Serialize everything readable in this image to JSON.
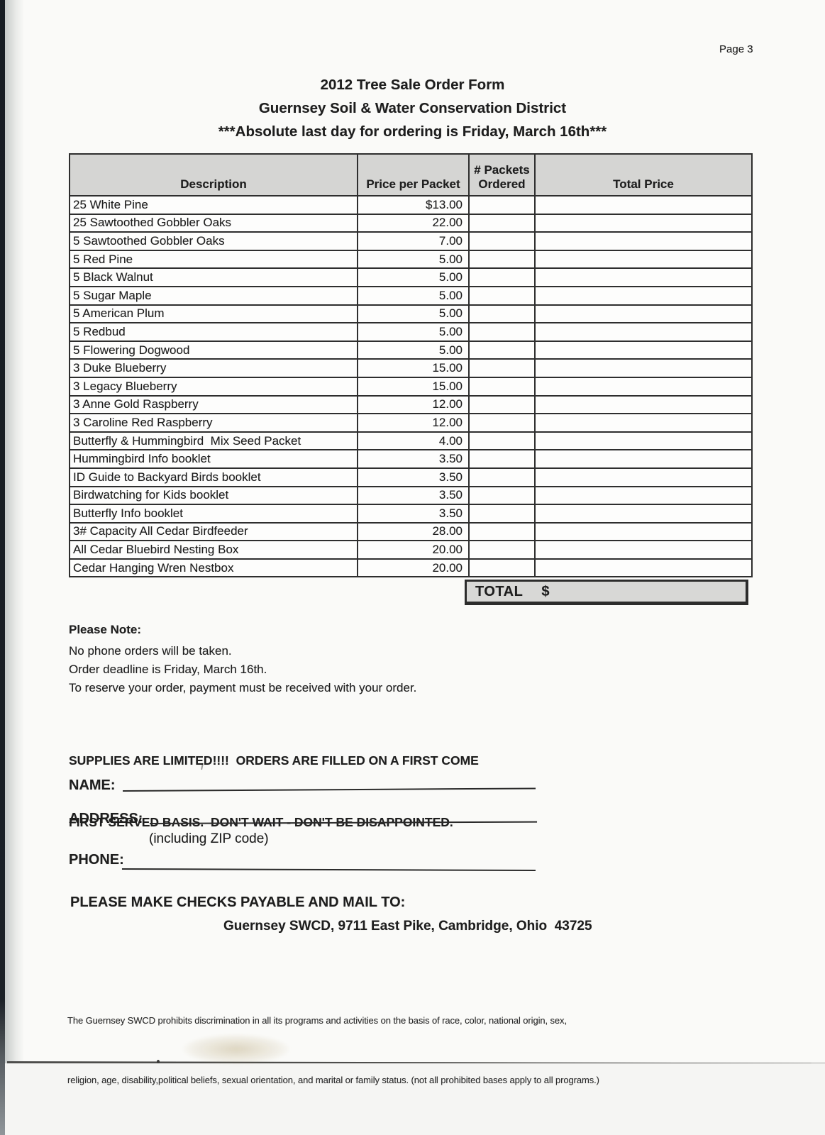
{
  "page": {
    "page_number_label": "Page 3"
  },
  "header": {
    "title_line1": "2012 Tree Sale Order Form",
    "title_line2": "Guernsey Soil & Water Conservation District",
    "title_line3": "***Absolute last day for ordering is Friday, March 16th***"
  },
  "table": {
    "col_description": "Description",
    "col_price": "Price per Packet",
    "col_packets_line1": "# Packets",
    "col_packets_line2": "Ordered",
    "col_total": "Total Price",
    "rows": [
      {
        "description": "25 White Pine",
        "price": "$13.00",
        "packets_ordered": "",
        "total_price": ""
      },
      {
        "description": "25 Sawtoothed Gobbler Oaks",
        "price": "22.00",
        "packets_ordered": "",
        "total_price": ""
      },
      {
        "description": "5 Sawtoothed Gobbler Oaks",
        "price": "7.00",
        "packets_ordered": "",
        "total_price": ""
      },
      {
        "description": "5 Red Pine",
        "price": "5.00",
        "packets_ordered": "",
        "total_price": ""
      },
      {
        "description": "5 Black Walnut",
        "price": "5.00",
        "packets_ordered": "",
        "total_price": ""
      },
      {
        "description": "5 Sugar Maple",
        "price": "5.00",
        "packets_ordered": "",
        "total_price": ""
      },
      {
        "description": "5 American Plum",
        "price": "5.00",
        "packets_ordered": "",
        "total_price": ""
      },
      {
        "description": "5 Redbud",
        "price": "5.00",
        "packets_ordered": "",
        "total_price": ""
      },
      {
        "description": "5 Flowering Dogwood",
        "price": "5.00",
        "packets_ordered": "",
        "total_price": ""
      },
      {
        "description": "3 Duke Blueberry",
        "price": "15.00",
        "packets_ordered": "",
        "total_price": ""
      },
      {
        "description": "3 Legacy Blueberry",
        "price": "15.00",
        "packets_ordered": "",
        "total_price": ""
      },
      {
        "description": "3 Anne Gold Raspberry",
        "price": "12.00",
        "packets_ordered": "",
        "total_price": ""
      },
      {
        "description": "3 Caroline Red Raspberry",
        "price": "12.00",
        "packets_ordered": "",
        "total_price": ""
      },
      {
        "description": "Butterfly & Hummingbird  Mix Seed Packet",
        "price": "4.00",
        "packets_ordered": "",
        "total_price": ""
      },
      {
        "description": "Hummingbird Info booklet",
        "price": "3.50",
        "packets_ordered": "",
        "total_price": ""
      },
      {
        "description": "ID Guide to Backyard Birds booklet",
        "price": "3.50",
        "packets_ordered": "",
        "total_price": ""
      },
      {
        "description": "Birdwatching for Kids booklet",
        "price": "3.50",
        "packets_ordered": "",
        "total_price": ""
      },
      {
        "description": "Butterfly Info booklet",
        "price": "3.50",
        "packets_ordered": "",
        "total_price": ""
      },
      {
        "description": "3# Capacity All Cedar Birdfeeder",
        "price": "28.00",
        "packets_ordered": "",
        "total_price": ""
      },
      {
        "description": "All Cedar Bluebird Nesting Box",
        "price": "20.00",
        "packets_ordered": "",
        "total_price": ""
      },
      {
        "description": "Cedar Hanging Wren Nestbox",
        "price": "20.00",
        "packets_ordered": "",
        "total_price": ""
      }
    ],
    "total_label": "TOTAL",
    "total_currency": "$",
    "total_value": ""
  },
  "notes": {
    "heading": "Please Note:",
    "lines": [
      "No phone orders will be taken.",
      "Order deadline is Friday, March 16th.",
      "To reserve your order, payment must be received with your order."
    ]
  },
  "supplies_notice": {
    "line1": "SUPPLIES ARE LIMITED!!!!  ORDERS ARE FILLED ON A FIRST COME",
    "line2": "FIRST SERVED BASIS.  DON'T WAIT - DON'T BE DISAPPOINTED."
  },
  "form_fields": {
    "name_label": "NAME:",
    "name_value": "",
    "address_label": "ADDRESS:",
    "address_value": "",
    "address_hint": "(including ZIP code)",
    "phone_label": "PHONE:",
    "phone_value": ""
  },
  "payment": {
    "instruction": "PLEASE MAKE CHECKS PAYABLE AND MAIL TO:",
    "payee_address": "Guernsey SWCD, 9711 East Pike, Cambridge, Ohio  43725"
  },
  "footer": {
    "line1": "The Guernsey SWCD prohibits discrimination in all its programs and activities on the basis of race, color, national origin, sex,",
    "line2": "religion, age, disability,political beliefs, sexual orientation, and marital or family status. (not all prohibited bases apply to all programs.)"
  },
  "colors": {
    "table_header_gray": "#d5d5d3",
    "total_bar_gray": "#d8d8d6",
    "table_border": "#2e2e2e",
    "scanner_edge": "#171c23",
    "paper_white": "#fbfbf9"
  }
}
